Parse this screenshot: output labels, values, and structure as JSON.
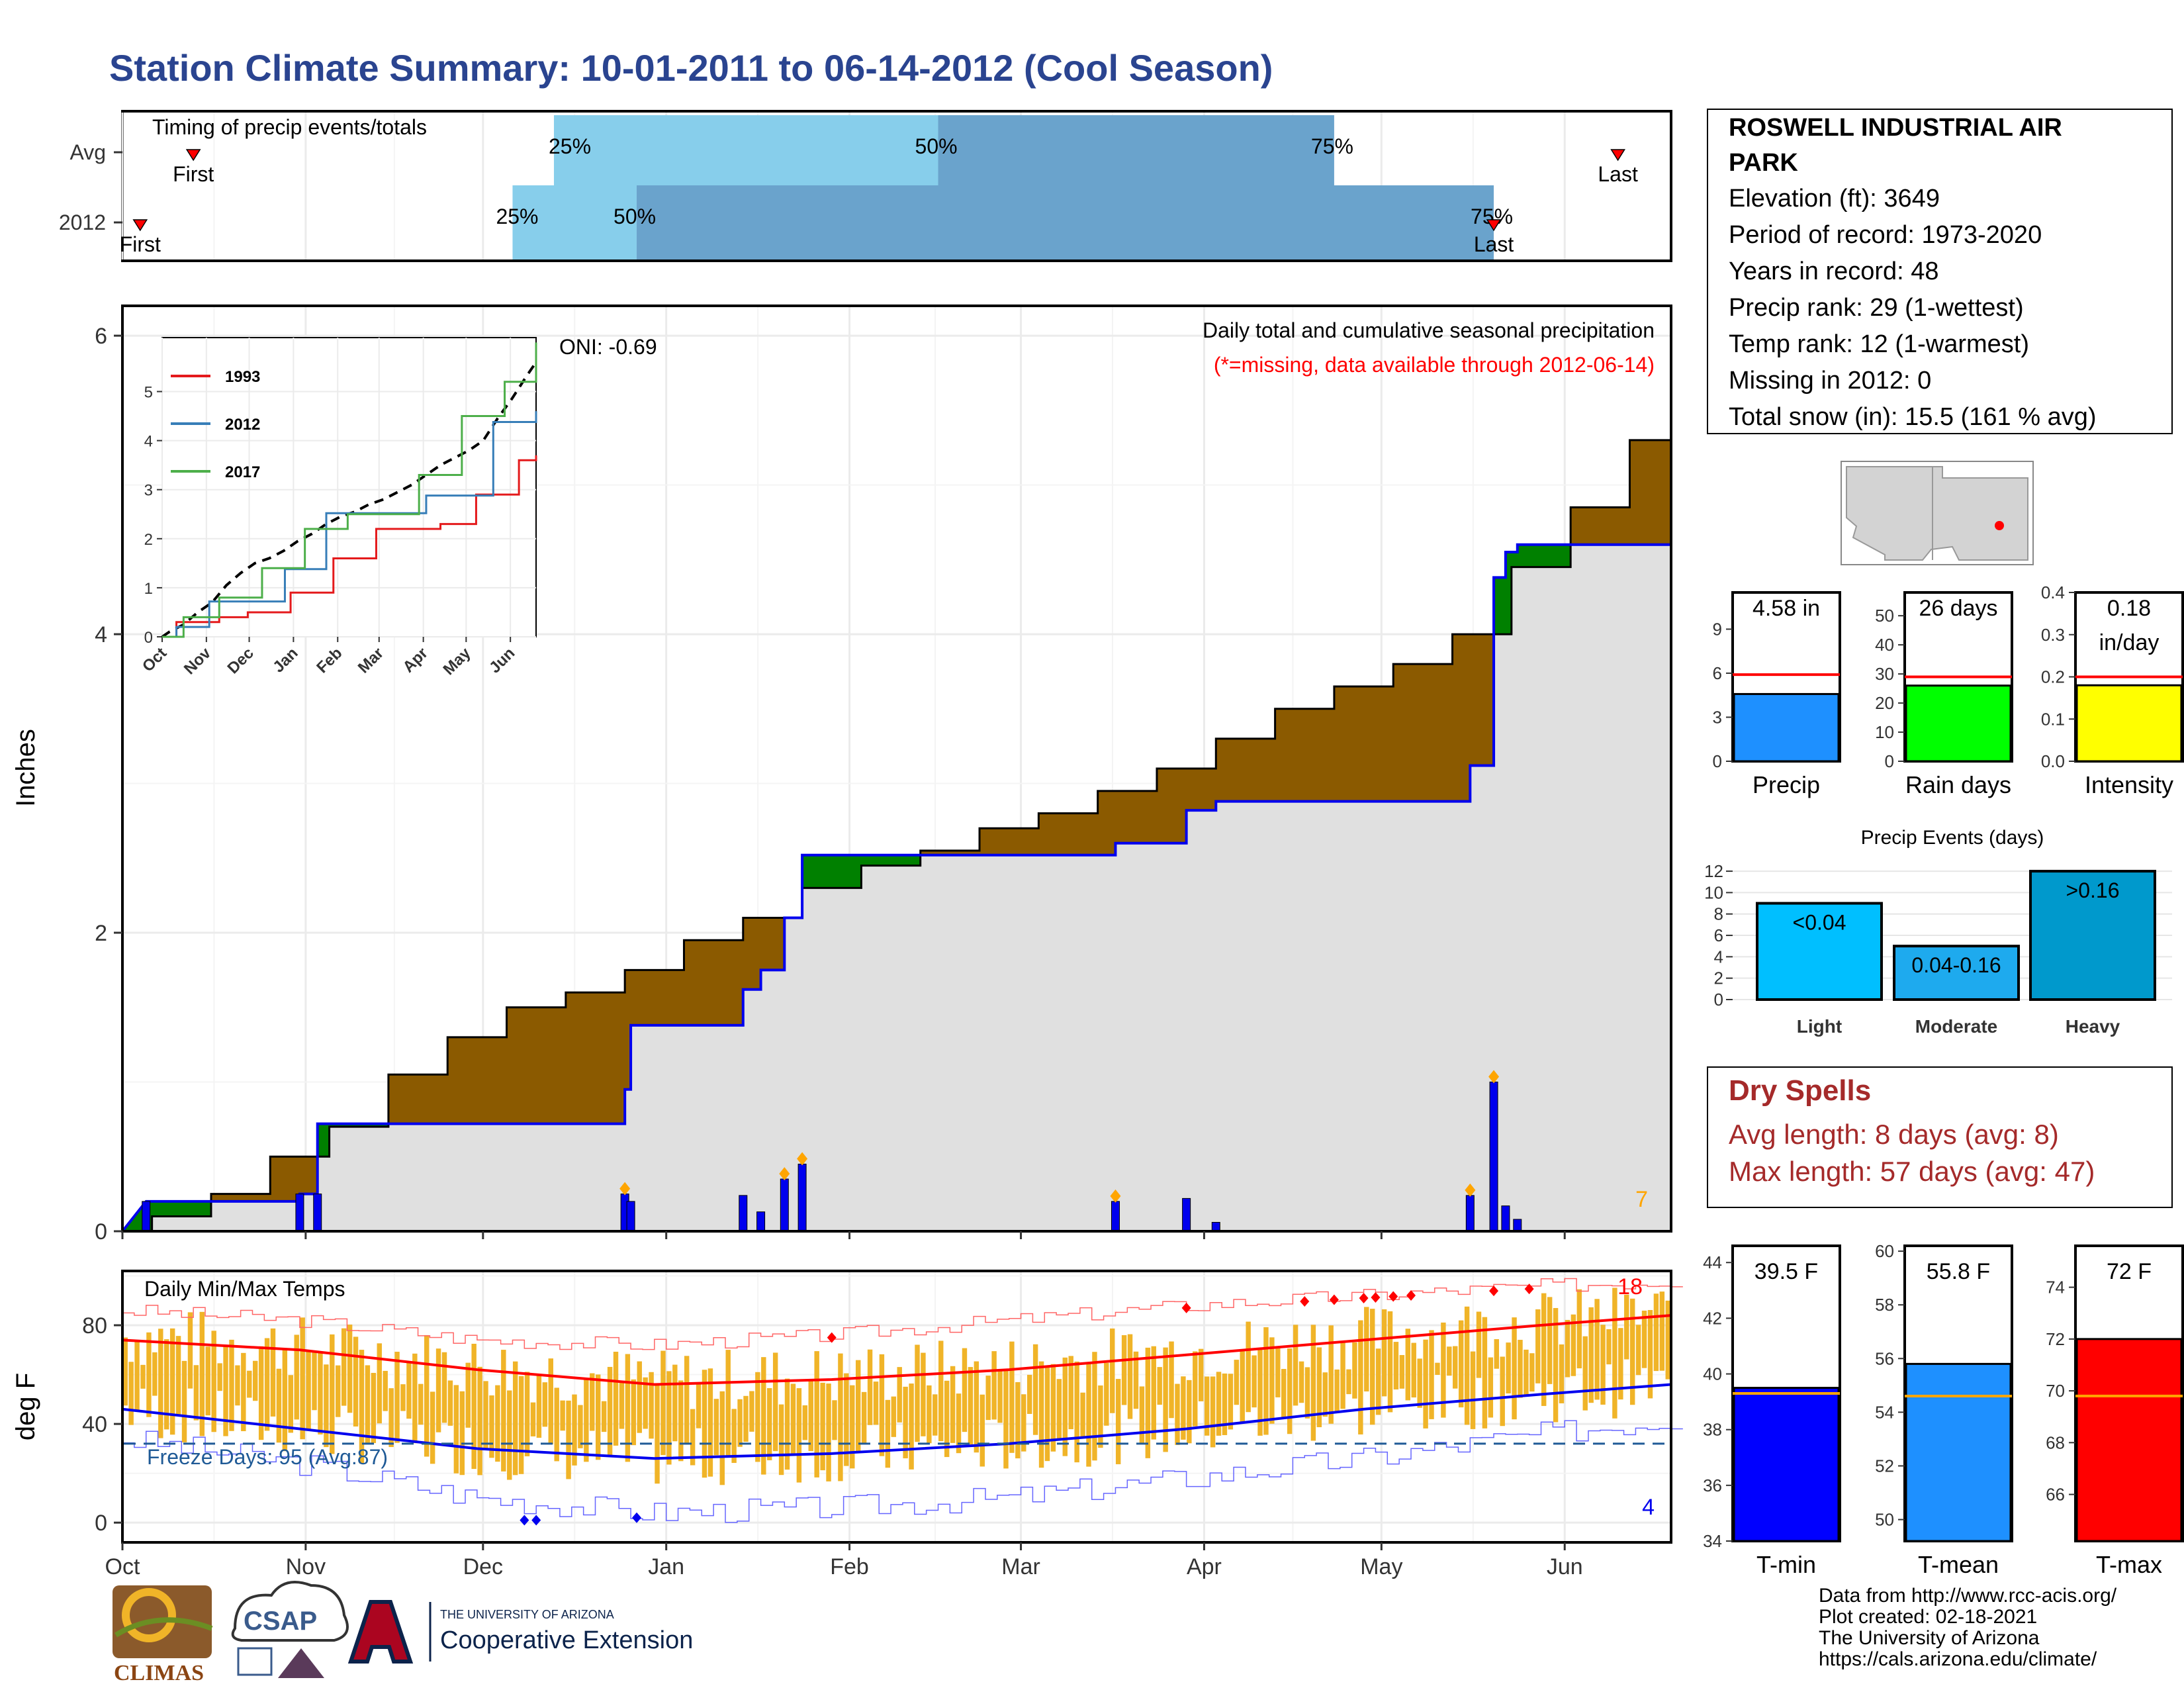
{
  "title": "Station Climate Summary: 10-01-2011 to 06-14-2012 (Cool Season)",
  "colors": {
    "title": "#2a4490",
    "brown": "#8b5a00",
    "green": "#008000",
    "gray": "#e0e0e0",
    "blue": "#0000ee",
    "red": "#ff0000",
    "orange": "#ffa500",
    "gold": "#f0b428",
    "lightblue": "#87ceeb",
    "midblue": "#6aa3cc",
    "darkred": "#a52a2a",
    "navy": "#1f5a96"
  },
  "months": [
    "Oct",
    "Nov",
    "Dec",
    "Jan",
    "Feb",
    "Mar",
    "Apr",
    "May",
    "Jun"
  ],
  "timing": {
    "label": "Timing of precip events/totals",
    "rows": [
      {
        "name": "Avg",
        "first_label": "First",
        "last_label": "Last",
        "first_day": 12,
        "last_day": 253,
        "p25": 73,
        "p50": 138,
        "p75": 205,
        "p25_label": "25%",
        "p50_label": "50%",
        "p75_label": "75%"
      },
      {
        "name": "2012",
        "first_label": "First",
        "last_label": "Last",
        "first_day": 3,
        "last_day": 232,
        "p25": 66,
        "p50": 87,
        "p75": 232,
        "p25_label": "25%",
        "p50_label": "50%",
        "p75_label": "75%"
      }
    ]
  },
  "station": {
    "name": "ROSWELL INDUSTRIAL AIR PARK",
    "name_line1": "ROSWELL INDUSTRIAL AIR",
    "name_line2": "PARK",
    "lines": [
      "Elevation (ft): 3649",
      "Period of record: 1973-2020",
      "Years in record: 48",
      "Precip rank: 29 (1-wettest)",
      "Temp rank: 12 (1-warmest)",
      "Missing in 2012: 0",
      "Total snow (in): 15.5 (161 % avg)"
    ]
  },
  "precip_panel": {
    "ylabel": "Inches",
    "oni": "ONI: -0.69",
    "legend_title": "Daily total and cumulative seasonal precipitation",
    "missing_note": "(*=missing, data available through 2012-06-14)",
    "count_label": "7",
    "yticks": [
      0,
      2,
      4,
      6
    ]
  },
  "inset": {
    "years": [
      "1993",
      "2012",
      "2017"
    ],
    "yticks": [
      0,
      1,
      2,
      3,
      4,
      5
    ]
  },
  "summary_bars": [
    {
      "name": "Precip",
      "value": 4.58,
      "avg": 5.9,
      "label": "4.58 in",
      "label2": "",
      "ymax": 11.5,
      "yticks": [
        0,
        3,
        6,
        9
      ],
      "color": "#1e90ff"
    },
    {
      "name": "Rain days",
      "value": 26,
      "avg": 29,
      "label": "26 days",
      "label2": "",
      "ymax": 58,
      "yticks": [
        0,
        10,
        20,
        30,
        40,
        50
      ],
      "color": "#00ff00"
    },
    {
      "name": "Intensity",
      "value": 0.18,
      "avg": 0.2,
      "label": "0.18",
      "label2": "in/day",
      "ymax": 0.4,
      "yticks": [
        0.0,
        0.1,
        0.2,
        0.3,
        0.4
      ],
      "color": "#ffff00"
    }
  ],
  "events": {
    "title": "Precip Events (days)",
    "yticks": [
      0,
      2,
      4,
      6,
      8,
      10,
      12
    ],
    "ymax": 12.5,
    "bars": [
      {
        "name": "Light",
        "value": 9,
        "label": "<0.04",
        "color": "#00bfff"
      },
      {
        "name": "Moderate",
        "value": 5,
        "label": "0.04-0.16",
        "color": "#1eaaee"
      },
      {
        "name": "Heavy",
        "value": 12,
        "label": ">0.16",
        "color": "#0099cc"
      }
    ]
  },
  "dry_spells": {
    "title": "Dry Spells",
    "avg_line": "Avg length: 8 days (avg: 8)",
    "max_line": "Max length: 57 days (avg: 47)"
  },
  "temp_panel": {
    "title": "Daily Min/Max Temps",
    "ylabel": "deg F",
    "freeze": "Freeze Days: 95 (Avg:87)",
    "hot_count": "18",
    "cold_count": "4",
    "yticks": [
      0,
      40,
      80
    ]
  },
  "temp_bars": [
    {
      "name": "T-min",
      "value": 39.5,
      "avg": 39.3,
      "label": "39.5 F",
      "ymin": 34,
      "ymax": 44.6,
      "yticks": [
        34,
        36,
        38,
        40,
        42,
        44
      ],
      "color": "#0000ff"
    },
    {
      "name": "T-mean",
      "value": 55.8,
      "avg": 54.6,
      "label": "55.8 F",
      "ymin": 49.2,
      "ymax": 60.2,
      "yticks": [
        50,
        52,
        54,
        56,
        58,
        60
      ],
      "color": "#1e90ff"
    },
    {
      "name": "T-max",
      "value": 72,
      "avg": 69.8,
      "label": "72 F",
      "ymin": 64.2,
      "ymax": 75.6,
      "yticks": [
        66,
        68,
        70,
        72,
        74
      ],
      "color": "#ff0000"
    }
  ],
  "footer": {
    "lines": [
      "Data from http://www.rcc-acis.org/",
      "Plot created: 02-18-2021",
      "The University of Arizona",
      "https://cals.arizona.edu/climate/"
    ],
    "logo1": "CLIMAS",
    "logo2": "CSAP",
    "logo3_small": "THE UNIVERSITY OF ARIZONA",
    "logo3_big": "Cooperative Extension"
  },
  "chart_data": [
    {
      "type": "area",
      "title": "Daily total and cumulative seasonal precipitation",
      "ylabel": "Inches",
      "ylim": [
        0,
        6.2
      ],
      "x_unit": "days since Oct 1",
      "avg_cumulative": [
        [
          0,
          0
        ],
        [
          5,
          0.1
        ],
        [
          15,
          0.25
        ],
        [
          25,
          0.5
        ],
        [
          35,
          0.7
        ],
        [
          45,
          1.05
        ],
        [
          55,
          1.3
        ],
        [
          65,
          1.5
        ],
        [
          75,
          1.6
        ],
        [
          85,
          1.75
        ],
        [
          95,
          1.95
        ],
        [
          105,
          2.1
        ],
        [
          115,
          2.3
        ],
        [
          125,
          2.45
        ],
        [
          135,
          2.55
        ],
        [
          145,
          2.7
        ],
        [
          155,
          2.8
        ],
        [
          165,
          2.95
        ],
        [
          175,
          3.1
        ],
        [
          185,
          3.3
        ],
        [
          195,
          3.5
        ],
        [
          205,
          3.65
        ],
        [
          215,
          3.8
        ],
        [
          225,
          4.0
        ],
        [
          235,
          4.45
        ],
        [
          245,
          4.85
        ],
        [
          255,
          5.3
        ],
        [
          262,
          5.6
        ]
      ],
      "obs_cumulative": [
        [
          0,
          0
        ],
        [
          4,
          0.2
        ],
        [
          30,
          0.2
        ],
        [
          30,
          0.25
        ],
        [
          33,
          0.25
        ],
        [
          33,
          0.72
        ],
        [
          85,
          0.72
        ],
        [
          85,
          0.95
        ],
        [
          86,
          0.95
        ],
        [
          86,
          1.38
        ],
        [
          105,
          1.38
        ],
        [
          105,
          1.62
        ],
        [
          108,
          1.62
        ],
        [
          108,
          1.75
        ],
        [
          112,
          1.75
        ],
        [
          112,
          2.1
        ],
        [
          115,
          2.1
        ],
        [
          115,
          2.52
        ],
        [
          168,
          2.52
        ],
        [
          168,
          2.6
        ],
        [
          180,
          2.6
        ],
        [
          180,
          2.82
        ],
        [
          185,
          2.82
        ],
        [
          185,
          2.88
        ],
        [
          228,
          2.88
        ],
        [
          228,
          3.12
        ],
        [
          232,
          3.12
        ],
        [
          232,
          4.38
        ],
        [
          234,
          4.38
        ],
        [
          234,
          4.55
        ],
        [
          236,
          4.55
        ],
        [
          236,
          4.6
        ],
        [
          262,
          4.6
        ]
      ],
      "daily": [
        [
          4,
          0.2
        ],
        [
          30,
          0.25
        ],
        [
          33,
          0.25
        ],
        [
          85,
          0.25
        ],
        [
          86,
          0.2
        ],
        [
          105,
          0.24
        ],
        [
          108,
          0.13
        ],
        [
          112,
          0.35
        ],
        [
          115,
          0.45
        ],
        [
          168,
          0.2
        ],
        [
          180,
          0.22
        ],
        [
          185,
          0.06
        ],
        [
          228,
          0.24
        ],
        [
          232,
          1.0
        ],
        [
          234,
          0.17
        ],
        [
          236,
          0.08
        ]
      ]
    },
    {
      "type": "line",
      "title": "Daily Min/Max Temps",
      "ylabel": "deg F",
      "ylim": [
        -8,
        102
      ],
      "freeze_line": 32,
      "avg_max": [
        [
          0,
          74
        ],
        [
          30,
          70
        ],
        [
          60,
          62
        ],
        [
          90,
          56
        ],
        [
          120,
          58
        ],
        [
          150,
          62
        ],
        [
          180,
          68
        ],
        [
          210,
          74
        ],
        [
          240,
          80
        ],
        [
          262,
          84
        ]
      ],
      "avg_min": [
        [
          0,
          46
        ],
        [
          30,
          38
        ],
        [
          60,
          30
        ],
        [
          90,
          26
        ],
        [
          120,
          28
        ],
        [
          150,
          32
        ],
        [
          180,
          38
        ],
        [
          210,
          46
        ],
        [
          240,
          52
        ],
        [
          262,
          56
        ]
      ],
      "record_max": [
        [
          0,
          86
        ],
        [
          30,
          82
        ],
        [
          60,
          74
        ],
        [
          90,
          72
        ],
        [
          120,
          76
        ],
        [
          150,
          82
        ],
        [
          180,
          88
        ],
        [
          210,
          92
        ],
        [
          240,
          96
        ],
        [
          262,
          98
        ]
      ],
      "record_min": [
        [
          0,
          34
        ],
        [
          30,
          24
        ],
        [
          60,
          10
        ],
        [
          90,
          4
        ],
        [
          120,
          6
        ],
        [
          150,
          10
        ],
        [
          180,
          18
        ],
        [
          210,
          26
        ],
        [
          240,
          36
        ],
        [
          262,
          42
        ]
      ]
    }
  ]
}
